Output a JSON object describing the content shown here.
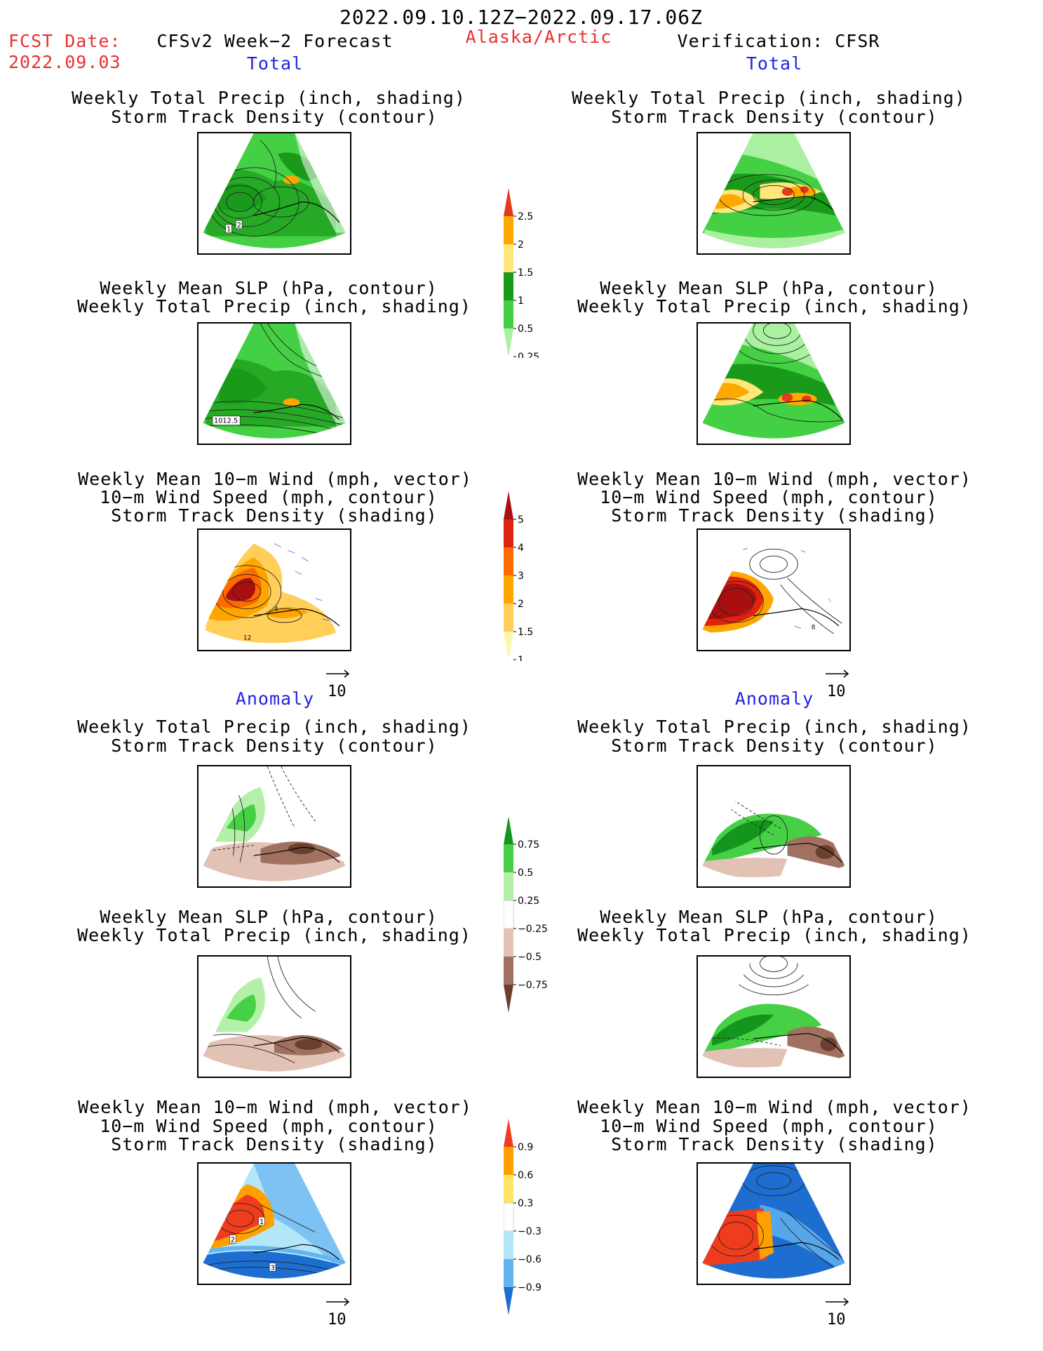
{
  "header": {
    "period": "2022.09.10.12Z−2022.09.17.06Z",
    "fcst_label": "FCST Date:",
    "fcst_date": "2022.09.03",
    "forecast_title": "CFSv2 Week−2 Forecast",
    "region": "Alaska/Arctic",
    "verification": "Verification: CFSR"
  },
  "sections": {
    "total": "Total",
    "anomaly": "Anomaly"
  },
  "panel_titles": {
    "precip_storm": [
      "Weekly Total Precip (inch, shading)",
      "Storm Track Density (contour)"
    ],
    "slp_precip": [
      "Weekly Mean SLP (hPa, contour)",
      "Weekly Total Precip (inch, shading)"
    ],
    "wind_storm": [
      "Weekly Mean 10−m Wind (mph, vector)",
      "10−m Wind Speed (mph, contour)",
      "Storm Track Density (shading)"
    ]
  },
  "map_labels": {
    "fcst_precip_storm": [
      "1",
      "2"
    ],
    "fcst_slp": "1012.5",
    "fcst_wind": [
      "12",
      "4"
    ],
    "cfsr_wind": "8",
    "fcst_wind_anom": [
      "1",
      "2",
      "3"
    ]
  },
  "vector_ref": "10",
  "colorbars": {
    "precip_total": {
      "labels": [
        "2.5",
        "2",
        "1.5",
        "1",
        "0.5",
        "0.25"
      ],
      "colors": [
        "#e23a1e",
        "#ffa800",
        "#ffe77a",
        "#1a9a1a",
        "#44d044",
        "#aaf0a0"
      ]
    },
    "storm_total": {
      "labels": [
        "5",
        "4",
        "3",
        "2",
        "1.5",
        "1"
      ],
      "colors": [
        "#a80f0f",
        "#e0230f",
        "#ff6a00",
        "#ffa500",
        "#ffcf5a",
        "#fff6aa"
      ]
    },
    "precip_anom": {
      "labels": [
        "0.75",
        "0.5",
        "0.25",
        "−0.25",
        "−0.5",
        "−0.75"
      ],
      "colors": [
        "#14961e",
        "#46d046",
        "#b4f0aa",
        "#ffffff",
        "#e2c2b4",
        "#a07060",
        "#6a3f30"
      ]
    },
    "storm_anom": {
      "labels": [
        "0.9",
        "0.6",
        "0.3",
        "−0.3",
        "−0.6",
        "−0.9"
      ],
      "colors": [
        "#f03c1e",
        "#ffa000",
        "#ffe466",
        "#ffffff",
        "#b4e6fa",
        "#64b4f0",
        "#1e6ed2"
      ]
    }
  }
}
